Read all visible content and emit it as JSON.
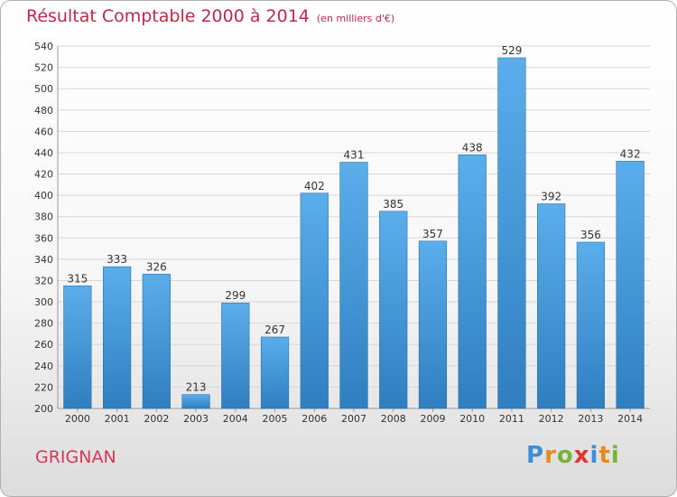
{
  "header": {
    "title": "Résultat Comptable 2000 à 2014",
    "subtitle": "(en milliers d'€)"
  },
  "footer": {
    "commune": "GRIGNAN",
    "logo_text": "Proxiti"
  },
  "colors": {
    "title": "#c0284a",
    "bar_top": "#5aaeea",
    "bar_bottom": "#2f7fc0",
    "grid": "#d7d7d7",
    "axis_text": "#333333"
  },
  "chart_data": {
    "type": "bar",
    "title": "Résultat Comptable 2000 à 2014",
    "subtitle": "(en milliers d'€)",
    "xlabel": "",
    "ylabel": "",
    "categories": [
      "2000",
      "2001",
      "2002",
      "2003",
      "2004",
      "2005",
      "2006",
      "2007",
      "2008",
      "2009",
      "2010",
      "2011",
      "2012",
      "2013",
      "2014"
    ],
    "values": [
      315,
      333,
      326,
      213,
      299,
      267,
      402,
      431,
      385,
      357,
      438,
      529,
      392,
      356,
      432
    ],
    "ylim": [
      200,
      540
    ],
    "yticks": [
      200,
      220,
      240,
      260,
      280,
      300,
      320,
      340,
      360,
      380,
      400,
      420,
      440,
      460,
      480,
      500,
      520,
      540
    ],
    "grid": true,
    "legend": "none",
    "data_labels": true
  }
}
